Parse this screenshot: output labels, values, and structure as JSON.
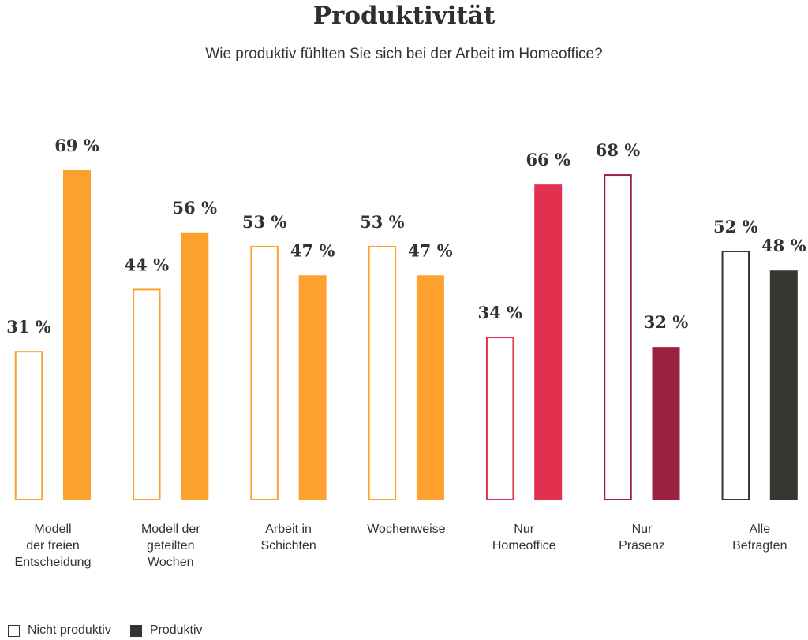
{
  "chart_data": {
    "type": "bar",
    "title": "Produktivität",
    "subtitle": "Wie produktiv fühlten Sie sich bei der Arbeit im Homeoffice?",
    "categories": [
      [
        "Modell",
        "der freien",
        "Entscheidung"
      ],
      [
        "Modell der",
        "geteilten",
        "Wochen"
      ],
      [
        "Arbeit in",
        "Schichten"
      ],
      [
        "Wochenweise"
      ],
      [
        "Nur",
        "Homeoffice"
      ],
      [
        "Nur",
        "Präsenz"
      ],
      [
        "Alle",
        "Befragten"
      ]
    ],
    "series": [
      {
        "name": "Nicht produktiv",
        "values": [
          31,
          44,
          53,
          53,
          34,
          68,
          52
        ]
      },
      {
        "name": "Produktiv",
        "values": [
          69,
          56,
          47,
          47,
          66,
          32,
          48
        ]
      }
    ],
    "value_labels": {
      "Nicht produktiv": [
        "31 %",
        "44 %",
        "53 %",
        "53 %",
        "34 %",
        "68 %",
        "52 %"
      ],
      "Produktiv": [
        "69 %",
        "56 %",
        "47 %",
        "47 %",
        "66 %",
        "32 %",
        "48 %"
      ]
    },
    "group_colors": [
      "#fca12e",
      "#fca12e",
      "#fca12e",
      "#fca12e",
      "#e3304f",
      "#9b2140",
      "#363633"
    ],
    "ylim": [
      0,
      69
    ],
    "grid": false,
    "legend_placement": "bottom-left"
  },
  "legend": [
    {
      "label": "Nicht produktiv",
      "style": "outline",
      "color": "#333333"
    },
    {
      "label": "Produktiv",
      "style": "filled",
      "color": "#333333"
    }
  ]
}
